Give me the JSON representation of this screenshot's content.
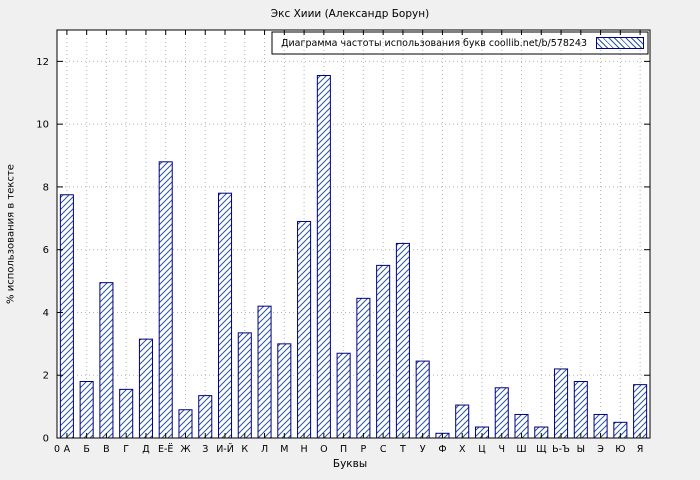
{
  "chart_data": {
    "type": "bar",
    "title": "Экс Хиии (Александр Борун)",
    "legend": "Диаграмма частоты использования букв coollib.net/b/578243",
    "xlabel": "Буквы",
    "ylabel": "% использования в тексте",
    "origin_tick_label": "0",
    "categories": [
      "А",
      "Б",
      "В",
      "Г",
      "Д",
      "Е-Ё",
      "Ж",
      "З",
      "И-Й",
      "К",
      "Л",
      "М",
      "Н",
      "О",
      "П",
      "Р",
      "С",
      "Т",
      "У",
      "Ф",
      "Х",
      "Ц",
      "Ч",
      "Ш",
      "Щ",
      "Ь-Ъ",
      "Ы",
      "Э",
      "Ю",
      "Я"
    ],
    "values": [
      7.75,
      1.8,
      4.95,
      1.55,
      3.15,
      8.8,
      0.9,
      1.35,
      7.8,
      3.35,
      4.2,
      3.0,
      6.9,
      11.55,
      2.7,
      4.45,
      5.5,
      6.2,
      2.45,
      0.15,
      1.05,
      0.35,
      1.6,
      0.75,
      0.35,
      2.2,
      1.8,
      0.75,
      0.5,
      1.7
    ],
    "yticks": [
      0,
      2,
      4,
      6,
      8,
      10,
      12
    ],
    "ylim": [
      0,
      13
    ],
    "grid": true,
    "legend_position": "top-right",
    "bar_style": "diagonal-hatch",
    "colors": {
      "bar_border": "#000080",
      "hatch": "#2a55a0",
      "grid": "#b5b5b5",
      "frame": "#000000",
      "plot_bg": "#ffffff",
      "page_bg": "#f0f0f0"
    }
  }
}
